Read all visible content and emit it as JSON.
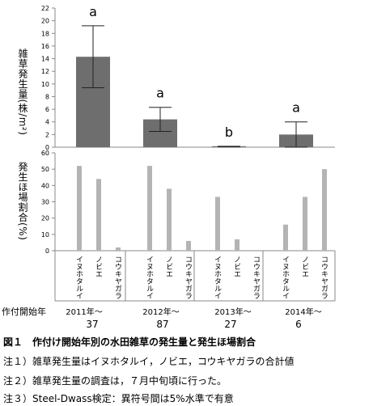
{
  "chart_data": [
    {
      "type": "bar",
      "categories": [
        "2011年～",
        "2012年～",
        "2013年～",
        "2014年～"
      ],
      "values": [
        14.3,
        4.4,
        0.1,
        2.0
      ],
      "error": [
        4.9,
        1.9,
        0.05,
        2.0
      ],
      "significance": [
        "a",
        "a",
        "b",
        "a"
      ],
      "ylabel": "雑草発生量(株/m²)",
      "ylim": [
        0,
        22
      ],
      "yticks": [
        0,
        2,
        4,
        6,
        8,
        10,
        12,
        14,
        16,
        18,
        20,
        22
      ],
      "bar_color": "#6e6e6e"
    },
    {
      "type": "bar",
      "categories": [
        "2011年～",
        "2012年～",
        "2013年～",
        "2014年～"
      ],
      "species": [
        "イヌホタルイ",
        "ノビエ",
        "コウキヤガラ"
      ],
      "series": [
        {
          "name": "イヌホタルイ",
          "values": [
            52,
            52,
            33,
            16
          ]
        },
        {
          "name": "ノビエ",
          "values": [
            44,
            38,
            7,
            33
          ]
        },
        {
          "name": "コウキヤガラ",
          "values": [
            2,
            6,
            0,
            50
          ]
        }
      ],
      "ylabel": "発生ほ場割合(%)",
      "ylim": [
        0,
        60
      ],
      "yticks": [
        0,
        10,
        20,
        30,
        40,
        50,
        60
      ],
      "bar_color": "#b4b4b4"
    }
  ],
  "table": {
    "row_label": "作付開始年",
    "years": [
      "2011年～",
      "2012年～",
      "2013年～",
      "2014年～"
    ],
    "counts": [
      "37",
      "87",
      "27",
      "6"
    ]
  },
  "captions": {
    "title": "図１　作付け開始年別の水田雑草の発生量と発生ほ場割合",
    "note1": "注１）雑草発生量はイヌホタルイ，ノビエ，コウキヤガラの合計値",
    "note2": "注２）雑草発生量の調査は，７月中旬頃に行った。",
    "note3": "注３）Steel-Dwass検定：異符号間は5%水準で有意"
  }
}
